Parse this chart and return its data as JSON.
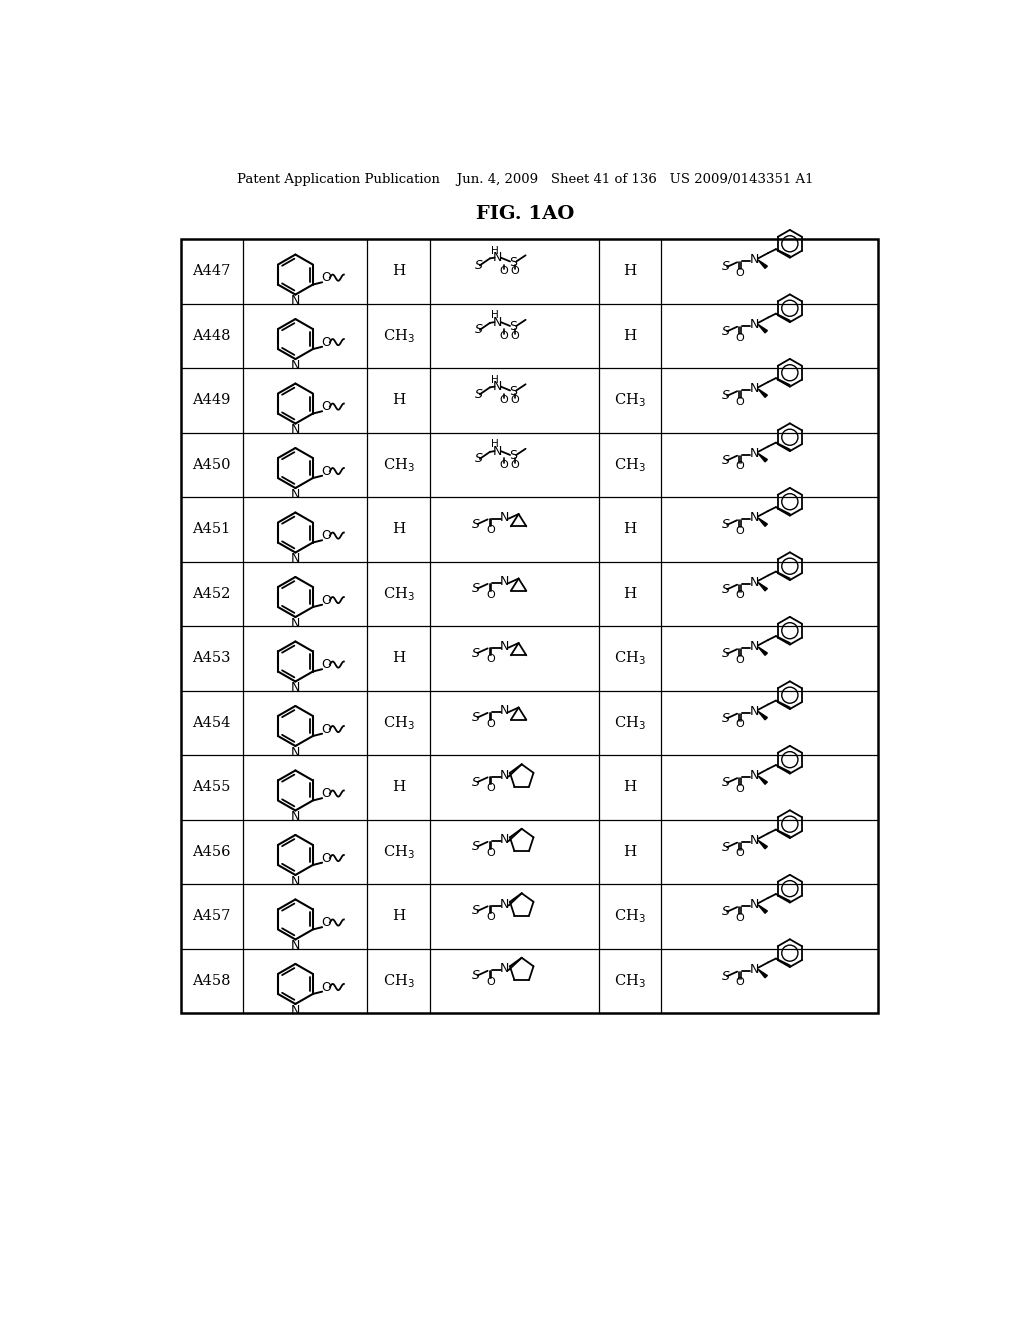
{
  "header": "Patent Application Publication    Jun. 4, 2009   Sheet 41 of 136   US 2009/0143351 A1",
  "title": "FIG. 1AO",
  "rows": [
    {
      "id": "A447",
      "r1": "H",
      "r2": "H",
      "mid": "sulfo"
    },
    {
      "id": "A448",
      "r1": "CH3",
      "r2": "H",
      "mid": "sulfo"
    },
    {
      "id": "A449",
      "r1": "H",
      "r2": "CH3",
      "mid": "sulfo"
    },
    {
      "id": "A450",
      "r1": "CH3",
      "r2": "CH3",
      "mid": "sulfo"
    },
    {
      "id": "A451",
      "r1": "H",
      "r2": "H",
      "mid": "cp"
    },
    {
      "id": "A452",
      "r1": "CH3",
      "r2": "H",
      "mid": "cp"
    },
    {
      "id": "A453",
      "r1": "H",
      "r2": "CH3",
      "mid": "cp"
    },
    {
      "id": "A454",
      "r1": "CH3",
      "r2": "CH3",
      "mid": "cp"
    },
    {
      "id": "A455",
      "r1": "H",
      "r2": "H",
      "mid": "pyrr"
    },
    {
      "id": "A456",
      "r1": "CH3",
      "r2": "H",
      "mid": "pyrr"
    },
    {
      "id": "A457",
      "r1": "H",
      "r2": "CH3",
      "mid": "pyrr"
    },
    {
      "id": "A458",
      "r1": "CH3",
      "r2": "CH3",
      "mid": "pyrr"
    }
  ],
  "TL": 68,
  "TR": 968,
  "TT": 1215,
  "TB": 210,
  "col_divs": [
    148,
    308,
    390,
    608,
    688
  ],
  "bg": "#ffffff"
}
